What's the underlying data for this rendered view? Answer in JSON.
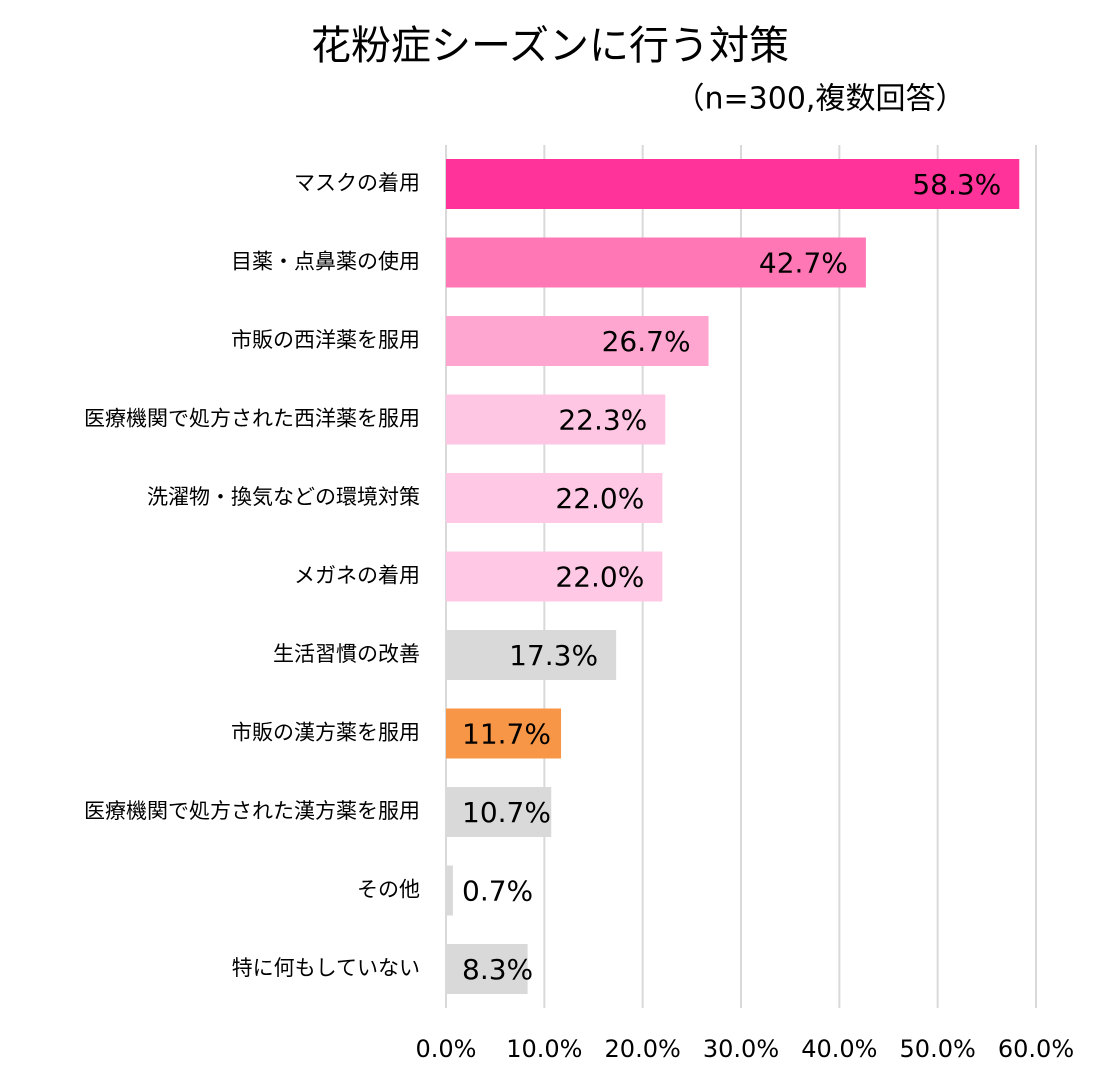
{
  "chart_data": {
    "type": "hbar",
    "title": "花粉症シーズンに行う対策",
    "subtitle": "（n=300,複数回答）",
    "categories": [
      "マスクの着用",
      "目薬・点鼻薬の使用",
      "市販の西洋薬を服用",
      "医療機関で処方された西洋薬を服用",
      "洗濯物・換気などの環境対策",
      "メガネの着用",
      "生活習慣の改善",
      "市販の漢方薬を服用",
      "医療機関で処方された漢方薬を服用",
      "その他",
      "特に何もしていない"
    ],
    "values": [
      58.3,
      42.7,
      26.7,
      22.3,
      22.0,
      22.0,
      17.3,
      11.7,
      10.7,
      0.7,
      8.3
    ],
    "value_labels": [
      "58.3%",
      "42.7%",
      "26.7%",
      "22.3%",
      "22.0%",
      "22.0%",
      "17.3%",
      "11.7%",
      "10.7%",
      "0.7%",
      "8.3%"
    ],
    "colors": [
      "#ff3399",
      "#ff77b4",
      "#ffa6d0",
      "#ffc6e3",
      "#ffc9e5",
      "#ffc9e5",
      "#d9d9d9",
      "#f79646",
      "#d9d9d9",
      "#d9d9d9",
      "#d9d9d9"
    ],
    "xlim": [
      0,
      60
    ],
    "xticks": [
      {
        "value": 0,
        "label": "0.0%"
      },
      {
        "value": 10,
        "label": "10.0%"
      },
      {
        "value": 20,
        "label": "20.0%"
      },
      {
        "value": 30,
        "label": "30.0%"
      },
      {
        "value": 40,
        "label": "40.0%"
      },
      {
        "value": 50,
        "label": "50.0%"
      },
      {
        "value": 60,
        "label": "60.0%"
      }
    ],
    "grid": true
  }
}
